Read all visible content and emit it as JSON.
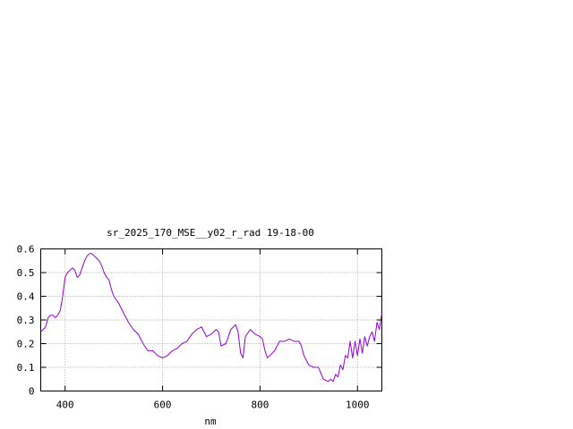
{
  "chart_data": {
    "type": "line",
    "title": "sr_2025_170_MSE__y02_r_rad 19-18-00",
    "xlabel": "nm",
    "ylabel": "",
    "xlim": [
      350,
      1050
    ],
    "ylim": [
      0,
      0.6
    ],
    "x_ticks": [
      400,
      600,
      800,
      1000
    ],
    "y_ticks": [
      0,
      0.1,
      0.2,
      0.3,
      0.4,
      0.5,
      0.6
    ],
    "x_tick_labels": [
      "400",
      "600",
      "800",
      "1000"
    ],
    "y_tick_labels": [
      "0",
      "0.1",
      "0.2",
      "0.3",
      "0.4",
      "0.5",
      "0.6"
    ],
    "grid": true,
    "legend": "none",
    "series": [
      {
        "color": "#9400d3",
        "x": [
          350,
          355,
          360,
          365,
          370,
          375,
          380,
          385,
          390,
          395,
          400,
          405,
          410,
          415,
          420,
          425,
          430,
          435,
          440,
          445,
          450,
          455,
          460,
          465,
          470,
          475,
          480,
          485,
          490,
          495,
          500,
          510,
          520,
          530,
          540,
          550,
          560,
          570,
          580,
          590,
          600,
          610,
          620,
          630,
          640,
          650,
          660,
          670,
          680,
          690,
          700,
          710,
          715,
          720,
          730,
          740,
          750,
          755,
          760,
          765,
          770,
          780,
          790,
          800,
          805,
          810,
          815,
          820,
          830,
          840,
          850,
          860,
          870,
          880,
          885,
          890,
          900,
          910,
          920,
          930,
          940,
          945,
          950,
          955,
          960,
          965,
          970,
          975,
          980,
          985,
          990,
          995,
          1000,
          1005,
          1010,
          1015,
          1020,
          1025,
          1030,
          1035,
          1040,
          1045,
          1050
        ],
        "y": [
          0.25,
          0.26,
          0.27,
          0.31,
          0.32,
          0.32,
          0.31,
          0.32,
          0.34,
          0.4,
          0.48,
          0.5,
          0.51,
          0.52,
          0.51,
          0.48,
          0.49,
          0.52,
          0.55,
          0.57,
          0.58,
          0.58,
          0.57,
          0.56,
          0.55,
          0.53,
          0.5,
          0.48,
          0.47,
          0.43,
          0.4,
          0.37,
          0.33,
          0.29,
          0.26,
          0.24,
          0.2,
          0.17,
          0.17,
          0.15,
          0.14,
          0.15,
          0.17,
          0.18,
          0.2,
          0.21,
          0.24,
          0.26,
          0.27,
          0.23,
          0.24,
          0.26,
          0.25,
          0.19,
          0.2,
          0.26,
          0.28,
          0.25,
          0.16,
          0.14,
          0.23,
          0.26,
          0.24,
          0.23,
          0.22,
          0.17,
          0.14,
          0.15,
          0.17,
          0.21,
          0.21,
          0.22,
          0.21,
          0.21,
          0.19,
          0.15,
          0.11,
          0.1,
          0.1,
          0.05,
          0.04,
          0.05,
          0.04,
          0.07,
          0.06,
          0.11,
          0.09,
          0.15,
          0.14,
          0.21,
          0.14,
          0.21,
          0.15,
          0.22,
          0.16,
          0.23,
          0.19,
          0.23,
          0.25,
          0.21,
          0.29,
          0.26,
          0.33
        ]
      }
    ]
  }
}
